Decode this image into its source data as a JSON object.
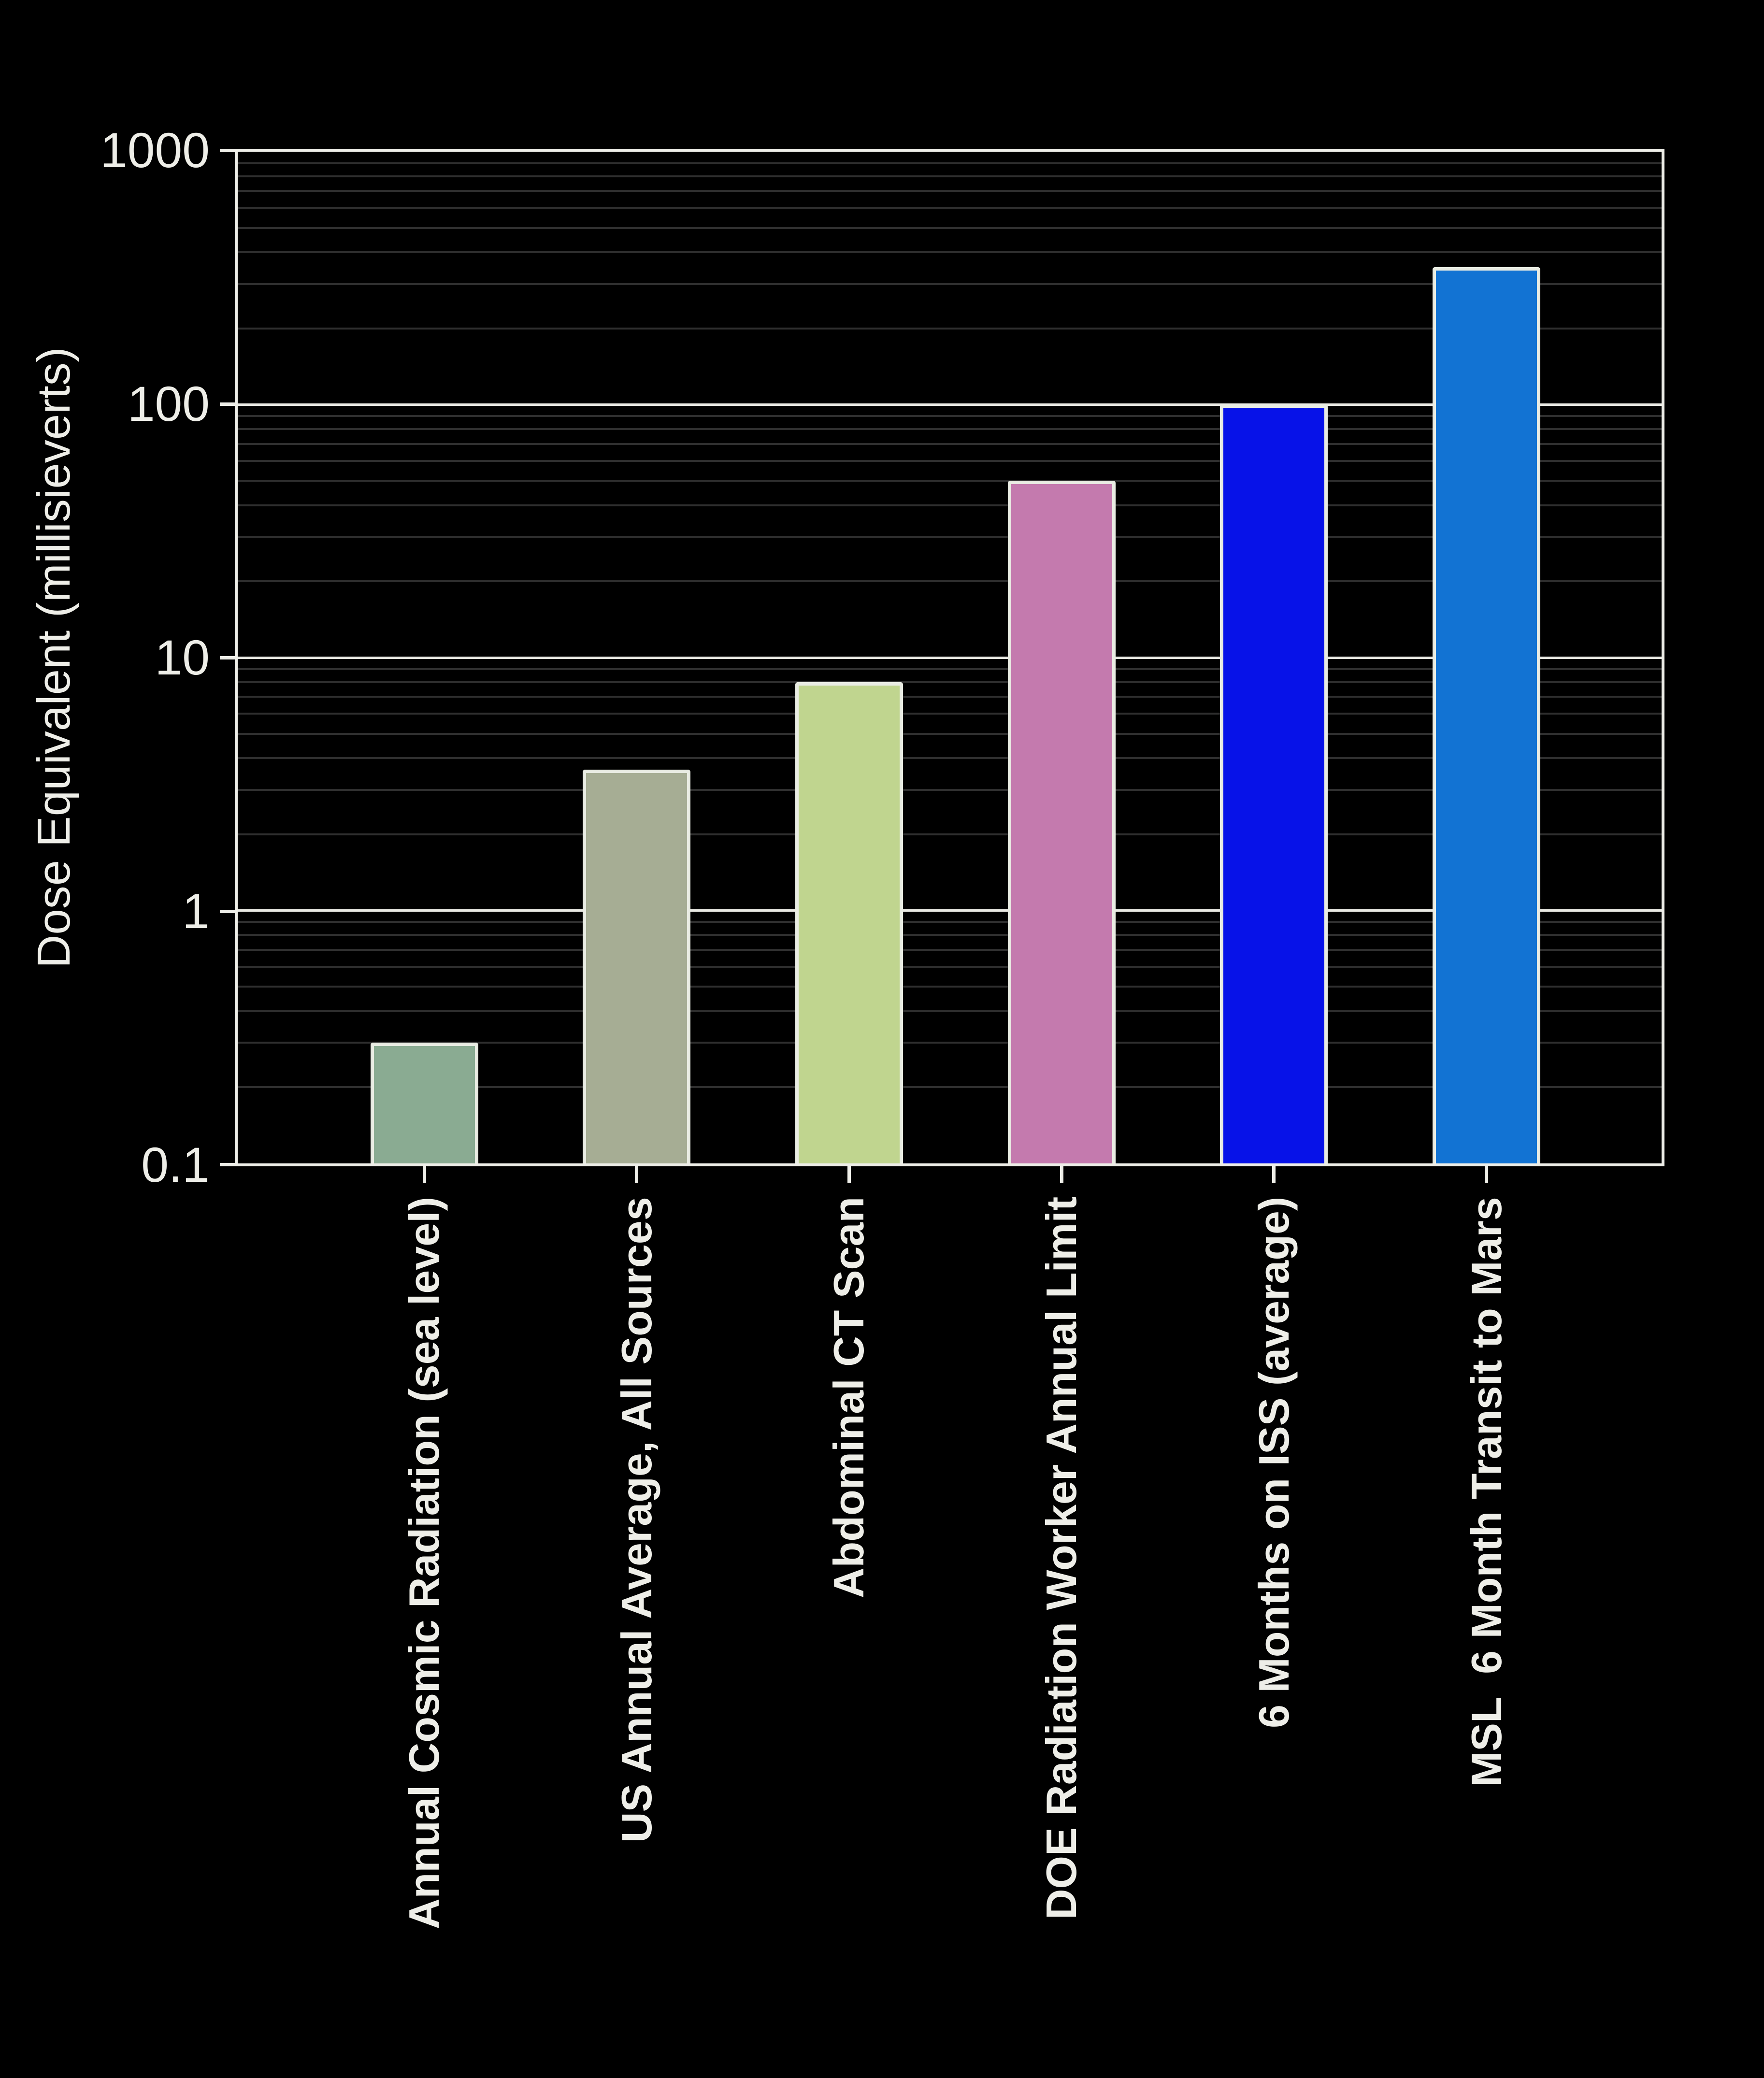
{
  "chart_data": {
    "type": "bar",
    "title": "",
    "ylabel": "Dose Equivalent (millisieverts)",
    "xlabel": "",
    "y_scale": "log",
    "ylim": [
      0.1,
      1000
    ],
    "y_tick_labels": [
      "1000",
      "100",
      "10",
      "1",
      "0.1"
    ],
    "y_tick_values": [
      1000,
      100,
      10,
      1,
      0.1
    ],
    "grid": "major white lines at decades, dark minor log gridlines",
    "legend": "none",
    "categories": [
      "Annual Cosmic Radiation (sea level)",
      "US Annual Average, All Sources",
      "Abdominal CT Scan",
      "DOE Radiation Worker Annual Limit",
      "6 Months on ISS (average)",
      "MSL  6 Month Transit to Mars"
    ],
    "values": [
      0.3,
      3.6,
      8,
      50,
      100,
      350
    ],
    "bar_colors": [
      "#8aab92",
      "#a6ad94",
      "#c0d58f",
      "#c47aae",
      "#0712e8",
      "#1273d3"
    ],
    "bar_edge_color": "#e9ece3",
    "background_color": "#000000",
    "axis_color": "#eeeee8",
    "text_color": "#eeeee8",
    "major_grid_color": "#e8e8e2",
    "minor_grid_color": "#2f2f2f"
  }
}
